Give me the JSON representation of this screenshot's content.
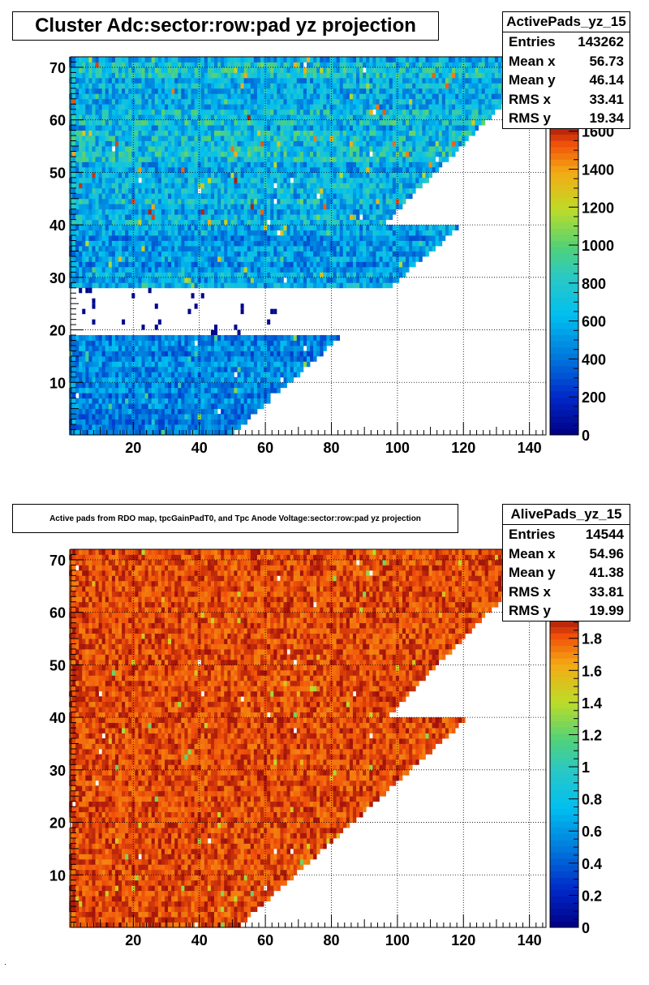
{
  "chart_data": [
    {
      "type": "heatmap",
      "title": "Cluster Adc:sector:row:pad yz projection",
      "xlabel": "",
      "ylabel": "",
      "xlim": [
        1,
        145
      ],
      "ylim": [
        0,
        72
      ],
      "x_ticks": [
        20,
        40,
        60,
        80,
        100,
        120,
        140
      ],
      "y_ticks": [
        10,
        20,
        30,
        40,
        50,
        60,
        70
      ],
      "grid": true,
      "colorbar": {
        "min": 0,
        "max": 1650,
        "ticks": [
          0,
          200,
          400,
          600,
          800,
          1000,
          1200,
          1400,
          1600
        ]
      },
      "palette": "rainbow (dark blue to dark red)",
      "stats": {
        "name": "ActivePads_yz_15",
        "entries": [
          {
            "label": "Entries",
            "value": "143262"
          },
          {
            "label": "Mean x",
            "value": "56.73"
          },
          {
            "label": "Mean y",
            "value": "46.14"
          },
          {
            "label": "RMS x",
            "value": "33.41"
          },
          {
            "label": "RMS y",
            "value": "19.34"
          }
        ]
      },
      "regions": [
        {
          "rows": [
            1,
            19
          ],
          "pad_edge_at_row1": 50,
          "pad_edge_at_row19": 82,
          "typical_value": 450
        },
        {
          "rows": [
            29,
            40
          ],
          "pad_edge_at_row29": 98,
          "pad_edge_at_row40": 118,
          "typical_value": 550
        },
        {
          "rows": [
            41,
            72
          ],
          "pad_edge_at_row41": 96,
          "pad_edge_at_row72": 145,
          "typical_value": 650
        }
      ]
    },
    {
      "type": "heatmap",
      "title": "Active pads from RDO map, tpcGainPadT0,  and Tpc Anode Voltage:sector:row:pad yz projection",
      "xlabel": "",
      "ylabel": "",
      "xlim": [
        1,
        145
      ],
      "ylim": [
        0,
        72
      ],
      "x_ticks": [
        20,
        40,
        60,
        80,
        100,
        120,
        140
      ],
      "y_ticks": [
        10,
        20,
        30,
        40,
        50,
        60,
        70
      ],
      "grid": true,
      "colorbar": {
        "min": 0,
        "max": 1.95,
        "ticks": [
          0,
          0.2,
          0.4,
          0.6,
          0.8,
          1,
          1.2,
          1.4,
          1.6,
          1.8
        ]
      },
      "palette": "rainbow (dark blue to dark red)",
      "stats": {
        "name": "AlivePads_yz_15",
        "entries": [
          {
            "label": "Entries",
            "value": "14544"
          },
          {
            "label": "Mean x",
            "value": "54.96"
          },
          {
            "label": "Mean y",
            "value": "41.38"
          },
          {
            "label": "RMS x",
            "value": "33.81"
          },
          {
            "label": "RMS y",
            "value": "19.99"
          }
        ]
      },
      "regions": [
        {
          "rows": [
            1,
            40
          ],
          "pad_edge_at_row1": 52,
          "pad_edge_at_row40": 120,
          "typical_value": 1.9
        },
        {
          "rows": [
            41,
            72
          ],
          "pad_edge_at_row41": 97,
          "pad_edge_at_row72": 145,
          "typical_value": 1.9
        }
      ]
    }
  ]
}
